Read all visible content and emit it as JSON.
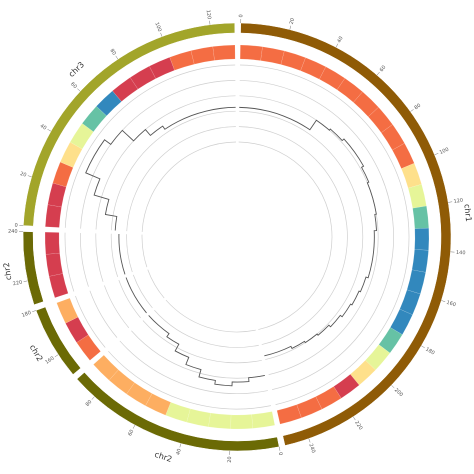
{
  "chart_data": {
    "type": "circos",
    "heatmap_colors": [
      "#d53e4f",
      "#f46d43",
      "#fdae61",
      "#fee08b",
      "#e6f598",
      "#abdda4",
      "#66c2a5",
      "#3288bd"
    ],
    "ylim": [
      0,
      1
    ],
    "yticks": [
      0,
      0.2,
      0.4,
      0.6,
      0.8,
      1
    ],
    "grid": true,
    "segments": [
      {
        "name": "chr1",
        "color": "#8f5b06",
        "start": 0,
        "end": 250,
        "ticks": [
          0,
          20,
          40,
          60,
          80,
          100,
          120,
          140,
          160,
          180,
          200,
          220,
          240
        ],
        "heatmap": [
          0.15,
          0.15,
          0.15,
          0.15,
          0.15,
          0.15,
          0.15,
          0.15,
          0.15,
          0.15,
          0.45,
          0.6,
          0.85,
          1,
          1,
          1,
          1,
          1,
          0.85,
          0.6,
          0.45,
          0,
          0.15,
          0.15,
          0.15
        ],
        "values": [
          0.45,
          0.45,
          0.45,
          0.45,
          0.45,
          0.6,
          0.62,
          0.65,
          0.65,
          0.62,
          0.6,
          0.6,
          0.58,
          0.55,
          0.55,
          0.55,
          0.52,
          0.5,
          0.48,
          0.45,
          0.42,
          0.4,
          0.38,
          0.35,
          0.35
        ]
      },
      {
        "name": "chr2",
        "color": "#6b6a05",
        "start": 0,
        "end": 90,
        "ticks": [
          0,
          20,
          40,
          60,
          80
        ],
        "heatmap": [
          0.55,
          0.55,
          0.55,
          0.55,
          0.5,
          0.3,
          0.3,
          0.3,
          0.3
        ],
        "values": [
          0.6,
          0.65,
          0.7,
          0.65,
          0.55,
          0.45,
          0.35,
          0.3,
          0.3
        ]
      },
      {
        "name": "chr2",
        "color": "#6b6a05",
        "start": 150,
        "end": 180,
        "ticks": [
          160,
          180
        ],
        "heatmap": [
          0.15,
          0,
          0.3
        ],
        "values": [
          0.3,
          0.3,
          0.3
        ]
      },
      {
        "name": "chr2",
        "color": "#6b6a05",
        "start": 210,
        "end": 240,
        "ticks": [
          220,
          240
        ],
        "heatmap": [
          0,
          0,
          0
        ],
        "values": [
          0.3,
          0.3,
          0.3
        ]
      },
      {
        "name": "chr3",
        "color": "#a2a52a",
        "start": 0,
        "end": 130,
        "ticks": [
          0,
          20,
          40,
          60,
          80,
          100,
          120
        ],
        "heatmap": [
          0,
          0,
          0.15,
          0.45,
          0.6,
          0.85,
          1,
          0,
          0,
          0,
          0.15,
          0.15,
          0.15
        ],
        "values": [
          0.35,
          0.5,
          0.7,
          0.9,
          0.9,
          0.8,
          0.6,
          0.5,
          0.45,
          0.45,
          0.45,
          0.45,
          0.45
        ]
      }
    ]
  }
}
